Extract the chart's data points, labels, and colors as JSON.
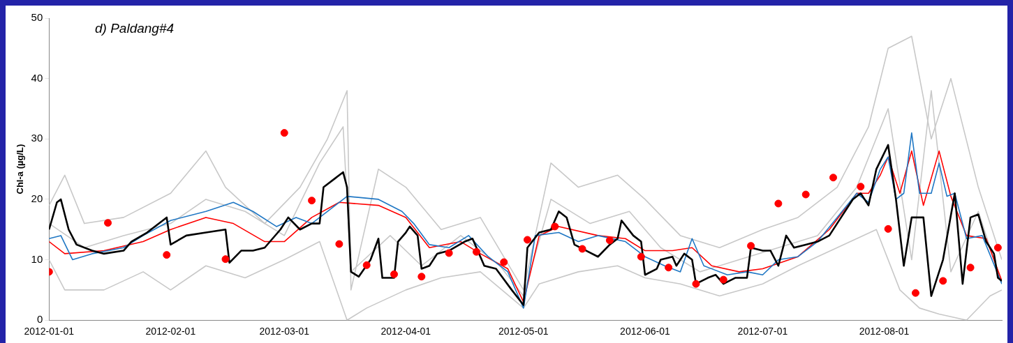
{
  "chart_data": {
    "type": "line",
    "title": "d) Paldang#4",
    "ylabel": "Chl-a (µg/L)",
    "xlim": [
      "2012-01-01",
      "2012-08-31"
    ],
    "xticks": [
      "2012-01-01",
      "2012-02-01",
      "2012-03-01",
      "2012-04-01",
      "2012-05-01",
      "2012-06-01",
      "2012-07-01",
      "2012-08-01"
    ],
    "ylim": [
      0,
      50
    ],
    "yticks": [
      0,
      10,
      20,
      30,
      40,
      50
    ],
    "grid": false,
    "legend": false,
    "marker": "none",
    "line_style": "solid",
    "series": [
      {
        "color": "#c8c8c8",
        "x": [
          "2012-01-01",
          "2012-01-05",
          "2012-01-10",
          "2012-01-20",
          "2012-02-01",
          "2012-02-10",
          "2012-02-15",
          "2012-02-25",
          "2012-03-05",
          "2012-03-12",
          "2012-03-17",
          "2012-03-18",
          "2012-03-25",
          "2012-04-01",
          "2012-04-10",
          "2012-04-20",
          "2012-05-01",
          "2012-05-08",
          "2012-05-15",
          "2012-05-25",
          "2012-06-01",
          "2012-06-10",
          "2012-06-20",
          "2012-07-01",
          "2012-07-10",
          "2012-07-20",
          "2012-07-28",
          "2012-08-02",
          "2012-08-08",
          "2012-08-13",
          "2012-08-18",
          "2012-08-25",
          "2012-08-31"
        ],
        "values": [
          19,
          24,
          16,
          17,
          21,
          28,
          22,
          16,
          22,
          30,
          38,
          5,
          25,
          22,
          15,
          17,
          5,
          26,
          22,
          24,
          20,
          14,
          12,
          15,
          17,
          22,
          32,
          45,
          47,
          30,
          40,
          22,
          10
        ]
      },
      {
        "color": "#c8c8c8",
        "x": [
          "2012-01-01",
          "2012-01-05",
          "2012-01-15",
          "2012-01-25",
          "2012-02-01",
          "2012-02-10",
          "2012-02-20",
          "2012-03-01",
          "2012-03-10",
          "2012-03-17",
          "2012-03-22",
          "2012-04-01",
          "2012-04-10",
          "2012-04-20",
          "2012-05-01",
          "2012-05-05",
          "2012-05-15",
          "2012-05-25",
          "2012-06-01",
          "2012-06-10",
          "2012-06-20",
          "2012-07-01",
          "2012-07-10",
          "2012-07-20",
          "2012-07-30",
          "2012-08-05",
          "2012-08-10",
          "2012-08-15",
          "2012-08-22",
          "2012-08-28",
          "2012-08-31"
        ],
        "values": [
          10,
          5,
          5,
          8,
          5,
          9,
          7,
          10,
          13,
          0,
          2,
          5,
          7,
          8,
          2,
          6,
          8,
          9,
          7,
          6,
          4,
          6,
          9,
          12,
          15,
          5,
          2,
          1,
          0,
          4,
          5
        ]
      },
      {
        "color": "#c8c8c8",
        "x": [
          "2012-01-01",
          "2012-01-10",
          "2012-01-20",
          "2012-02-01",
          "2012-02-10",
          "2012-02-20",
          "2012-03-01",
          "2012-03-10",
          "2012-03-16",
          "2012-03-18",
          "2012-03-28",
          "2012-04-05",
          "2012-04-15",
          "2012-04-25",
          "2012-05-01",
          "2012-05-08",
          "2012-05-18",
          "2012-05-28",
          "2012-06-05",
          "2012-06-15",
          "2012-06-25",
          "2012-07-05",
          "2012-07-15",
          "2012-07-25",
          "2012-08-02",
          "2012-08-08",
          "2012-08-13",
          "2012-08-18",
          "2012-08-25",
          "2012-08-31"
        ],
        "values": [
          16,
          12,
          14,
          16,
          20,
          18,
          14,
          26,
          32,
          8,
          14,
          9,
          14,
          9,
          4,
          20,
          16,
          18,
          12,
          8,
          10,
          12,
          14,
          22,
          35,
          10,
          38,
          8,
          18,
          6
        ]
      },
      {
        "color": "#ff0000",
        "x": [
          "2012-01-01",
          "2012-01-05",
          "2012-01-15",
          "2012-01-25",
          "2012-02-01",
          "2012-02-10",
          "2012-02-17",
          "2012-02-25",
          "2012-03-01",
          "2012-03-08",
          "2012-03-15",
          "2012-03-25",
          "2012-04-01",
          "2012-04-07",
          "2012-04-15",
          "2012-04-20",
          "2012-04-27",
          "2012-05-01",
          "2012-05-05",
          "2012-05-10",
          "2012-05-20",
          "2012-05-27",
          "2012-06-01",
          "2012-06-08",
          "2012-06-13",
          "2012-06-18",
          "2012-06-25",
          "2012-07-01",
          "2012-07-10",
          "2012-07-18",
          "2012-07-25",
          "2012-07-28",
          "2012-07-31",
          "2012-08-02",
          "2012-08-05",
          "2012-08-08",
          "2012-08-11",
          "2012-08-15",
          "2012-08-18",
          "2012-08-22",
          "2012-08-27",
          "2012-08-31"
        ],
        "values": [
          13,
          11,
          11.5,
          13,
          15,
          17,
          16,
          13,
          13,
          17,
          19.5,
          19,
          17,
          12,
          13,
          11,
          8.5,
          3,
          14,
          15.5,
          14,
          13.5,
          11.5,
          11.5,
          12,
          9,
          8,
          8.5,
          10.5,
          15,
          21,
          21,
          24,
          27,
          21,
          28,
          19,
          28,
          20.5,
          14,
          13.5,
          6.5
        ]
      },
      {
        "color": "#1f77c4",
        "x": [
          "2012-01-01",
          "2012-01-04",
          "2012-01-07",
          "2012-01-12",
          "2012-01-20",
          "2012-01-25",
          "2012-02-01",
          "2012-02-10",
          "2012-02-17",
          "2012-02-22",
          "2012-02-28",
          "2012-03-04",
          "2012-03-08",
          "2012-03-14",
          "2012-03-17",
          "2012-03-25",
          "2012-03-31",
          "2012-04-03",
          "2012-04-07",
          "2012-04-12",
          "2012-04-17",
          "2012-04-22",
          "2012-04-27",
          "2012-05-01",
          "2012-05-04",
          "2012-05-10",
          "2012-05-15",
          "2012-05-20",
          "2012-05-27",
          "2012-06-01",
          "2012-06-06",
          "2012-06-10",
          "2012-06-13",
          "2012-06-16",
          "2012-06-22",
          "2012-06-27",
          "2012-07-01",
          "2012-07-05",
          "2012-07-10",
          "2012-07-15",
          "2012-07-20",
          "2012-07-25",
          "2012-07-28",
          "2012-07-31",
          "2012-08-02",
          "2012-08-04",
          "2012-08-06",
          "2012-08-08",
          "2012-08-10",
          "2012-08-13",
          "2012-08-15",
          "2012-08-17",
          "2012-08-19",
          "2012-08-22",
          "2012-08-26",
          "2012-08-31"
        ],
        "values": [
          13.5,
          14,
          10,
          11,
          12,
          14,
          16.5,
          18,
          19.5,
          18,
          15.5,
          17,
          16,
          19,
          20.5,
          20,
          18,
          16,
          12.5,
          12,
          14,
          10.5,
          8,
          2,
          14,
          14.5,
          13,
          14,
          13,
          10.5,
          9,
          8,
          13.5,
          9,
          7.5,
          8,
          7.5,
          10,
          10.5,
          13,
          17,
          21,
          19.5,
          25,
          27,
          20,
          21,
          31,
          21,
          21,
          26,
          20.5,
          21,
          13.5,
          14,
          6
        ]
      },
      {
        "color": "#000000",
        "x": [
          "2012-01-01",
          "2012-01-03",
          "2012-01-04",
          "2012-01-06",
          "2012-01-08",
          "2012-01-12",
          "2012-01-15",
          "2012-01-20",
          "2012-01-22",
          "2012-01-26",
          "2012-01-31",
          "2012-02-01",
          "2012-02-05",
          "2012-02-10",
          "2012-02-15",
          "2012-02-16",
          "2012-02-19",
          "2012-02-22",
          "2012-02-25",
          "2012-02-29",
          "2012-03-02",
          "2012-03-05",
          "2012-03-08",
          "2012-03-10",
          "2012-03-11",
          "2012-03-14",
          "2012-03-16",
          "2012-03-17",
          "2012-03-18",
          "2012-03-20",
          "2012-03-23",
          "2012-03-25",
          "2012-03-26",
          "2012-03-29",
          "2012-03-30",
          "2012-04-01",
          "2012-04-02",
          "2012-04-04",
          "2012-04-05",
          "2012-04-07",
          "2012-04-09",
          "2012-04-12",
          "2012-04-16",
          "2012-04-18",
          "2012-04-21",
          "2012-04-24",
          "2012-04-28",
          "2012-05-01",
          "2012-05-02",
          "2012-05-05",
          "2012-05-08",
          "2012-05-10",
          "2012-05-12",
          "2012-05-14",
          "2012-05-17",
          "2012-05-20",
          "2012-05-23",
          "2012-05-25",
          "2012-05-26",
          "2012-05-29",
          "2012-05-31",
          "2012-06-01",
          "2012-06-04",
          "2012-06-05",
          "2012-06-08",
          "2012-06-09",
          "2012-06-11",
          "2012-06-13",
          "2012-06-14",
          "2012-06-17",
          "2012-06-19",
          "2012-06-21",
          "2012-06-24",
          "2012-06-27",
          "2012-06-28",
          "2012-07-01",
          "2012-07-03",
          "2012-07-05",
          "2012-07-07",
          "2012-07-09",
          "2012-07-12",
          "2012-07-15",
          "2012-07-18",
          "2012-07-21",
          "2012-07-24",
          "2012-07-26",
          "2012-07-28",
          "2012-07-30",
          "2012-08-02",
          "2012-08-04",
          "2012-08-06",
          "2012-08-08",
          "2012-08-11",
          "2012-08-13",
          "2012-08-16",
          "2012-08-19",
          "2012-08-21",
          "2012-08-23",
          "2012-08-25",
          "2012-08-27",
          "2012-08-29",
          "2012-08-30",
          "2012-08-31"
        ],
        "values": [
          15,
          19.5,
          20,
          15,
          12.5,
          11.5,
          11,
          11.5,
          13,
          14.5,
          17,
          12.5,
          14,
          14.5,
          15,
          9.5,
          11.5,
          11.5,
          12,
          15,
          17,
          15,
          16,
          16,
          22,
          23.5,
          24.5,
          22,
          8,
          7.2,
          10,
          13.5,
          7,
          7,
          13,
          14.5,
          15.5,
          14,
          8.5,
          9,
          11,
          11.5,
          13,
          13.5,
          9,
          8.5,
          5,
          2.5,
          12,
          14.5,
          15,
          18,
          17,
          12.5,
          11.5,
          10.5,
          12.5,
          13.5,
          16.5,
          14,
          13,
          7.5,
          8.5,
          10,
          10.5,
          9,
          11,
          10,
          6,
          7,
          7.5,
          6,
          7,
          7,
          12,
          11.5,
          11.5,
          9,
          14,
          12,
          12.5,
          13,
          14,
          17,
          20,
          21,
          19,
          25,
          29,
          20,
          9,
          17,
          17,
          4,
          10,
          21,
          6,
          17,
          17.5,
          13,
          11,
          7,
          6.5
        ]
      },
      {
        "type": "scatter",
        "marker": "circle",
        "color": "#ff0000",
        "x": [
          "2012-01-01",
          "2012-01-16",
          "2012-01-31",
          "2012-02-15",
          "2012-03-01",
          "2012-03-08",
          "2012-03-15",
          "2012-03-22",
          "2012-03-29",
          "2012-04-05",
          "2012-04-12",
          "2012-04-19",
          "2012-04-26",
          "2012-05-02",
          "2012-05-09",
          "2012-05-16",
          "2012-05-23",
          "2012-05-31",
          "2012-06-07",
          "2012-06-14",
          "2012-06-21",
          "2012-06-28",
          "2012-07-05",
          "2012-07-12",
          "2012-07-19",
          "2012-07-26",
          "2012-08-02",
          "2012-08-09",
          "2012-08-16",
          "2012-08-23",
          "2012-08-30"
        ],
        "values": [
          8,
          16.1,
          10.8,
          10.1,
          31,
          19.8,
          12.6,
          9.1,
          7.6,
          7.2,
          11.1,
          11.3,
          9.6,
          13.3,
          15.5,
          11.8,
          13.2,
          10.5,
          8.7,
          6,
          6.7,
          12.3,
          19.3,
          20.8,
          23.6,
          22.1,
          15.1,
          4.5,
          6.5,
          8.7,
          12
        ]
      }
    ]
  }
}
